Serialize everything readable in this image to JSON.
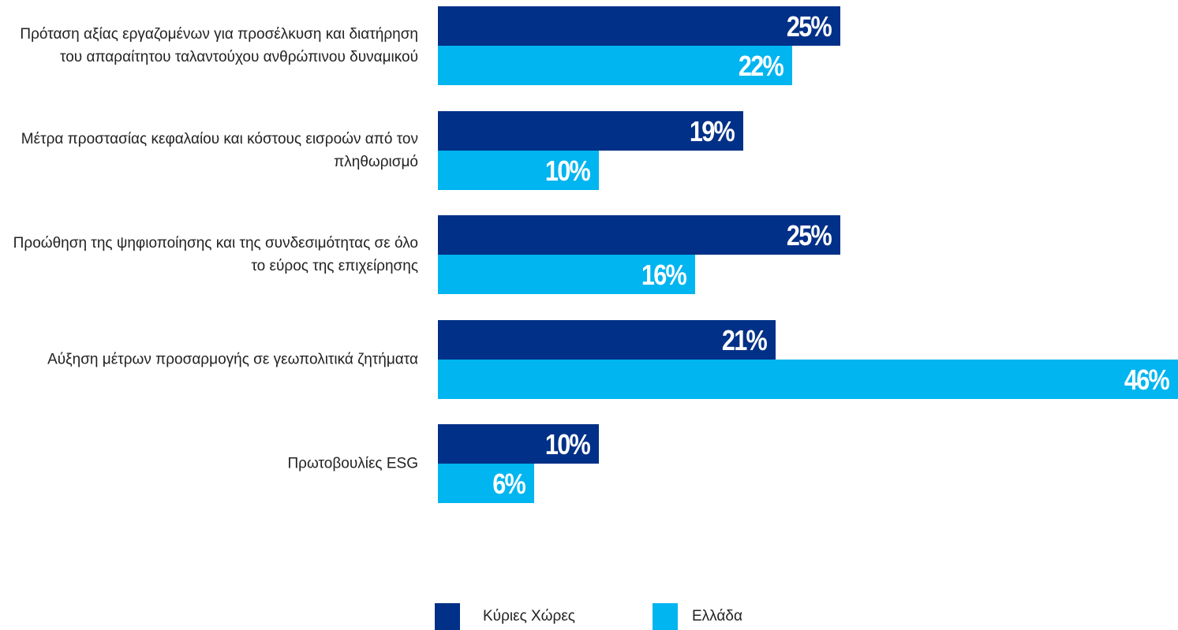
{
  "chart_data": {
    "type": "bar",
    "orientation": "horizontal",
    "categories": [
      "Πρόταση αξίας εργαζομένων για προσέλκυση και διατήρηση του απαραίτητου ταλαντούχου ανθρώπινου δυναμικού",
      "Μέτρα προστασίας κεφαλαίου και κόστους εισροών από τον πληθωρισμό",
      "Προώθηση της ψηφιοποίησης και της συνδεσιμότητας σε όλο το εύρος της επιχείρησης",
      "Αύξηση μέτρων προσαρμογής σε γεωπολιτικά ζητήματα",
      "Πρωτοβουλίες ESG"
    ],
    "series": [
      {
        "name": "Κύριες Χώρες",
        "color": "#003087",
        "values": [
          25,
          19,
          25,
          21,
          10
        ],
        "value_labels": [
          "25%",
          "19%",
          "25%",
          "21%",
          "10%"
        ]
      },
      {
        "name": "Ελλάδα",
        "color": "#00b5f0",
        "values": [
          22,
          10,
          16,
          46,
          6
        ],
        "value_labels": [
          "22%",
          "10%",
          "16%",
          "46%",
          "6%"
        ]
      }
    ]
  }
}
